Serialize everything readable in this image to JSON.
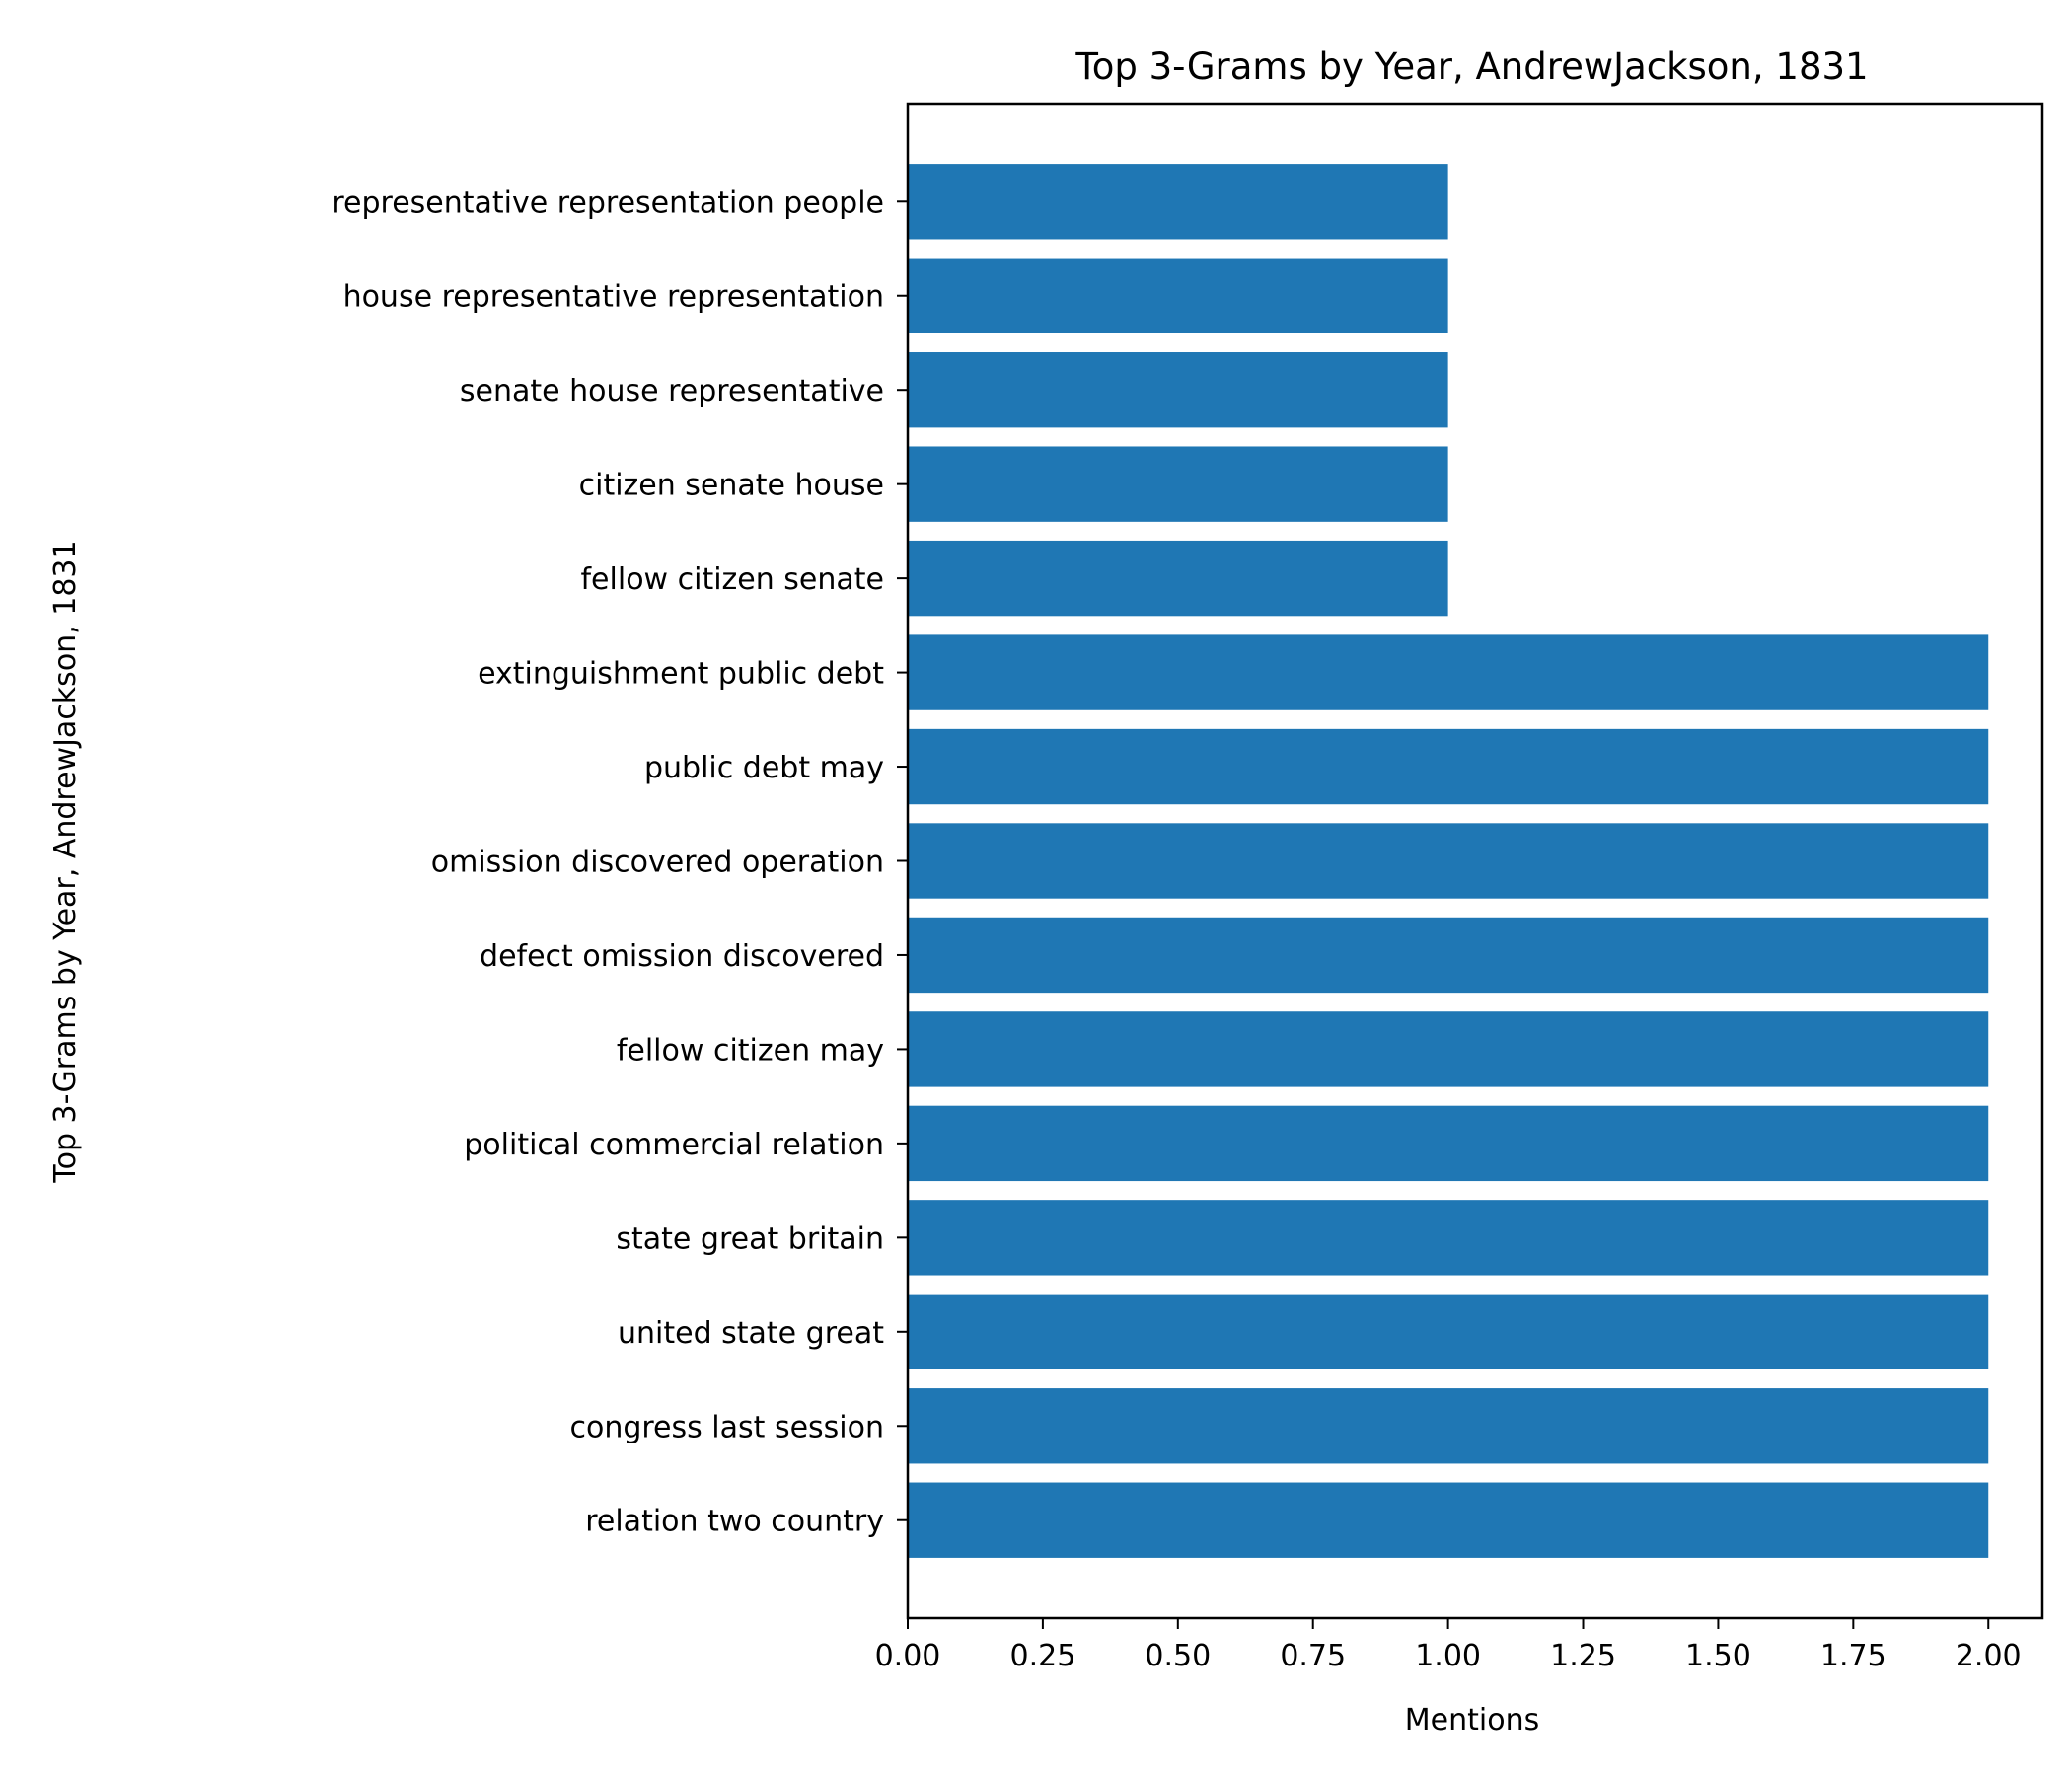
{
  "chart_data": {
    "type": "bar",
    "orientation": "horizontal",
    "title": "Top 3-Grams by Year, AndrewJackson, 1831",
    "xlabel": "Mentions",
    "ylabel": "Top 3-Grams by Year, AndrewJackson, 1831",
    "categories": [
      "relation two country",
      "congress last session",
      "united state great",
      "state great britain",
      "political commercial relation",
      "fellow citizen may",
      "defect omission discovered",
      "omission discovered operation",
      "public debt may",
      "extinguishment public debt",
      "fellow citizen senate",
      "citizen senate house",
      "senate house representative",
      "house representative representation",
      "representative representation people"
    ],
    "values": [
      2,
      2,
      2,
      2,
      2,
      2,
      2,
      2,
      2,
      2,
      1,
      1,
      1,
      1,
      1
    ],
    "xlim": [
      0,
      2.1
    ],
    "xticks": [
      "0.00",
      "0.25",
      "0.50",
      "0.75",
      "1.00",
      "1.25",
      "1.50",
      "1.75",
      "2.00"
    ],
    "grid": false,
    "bar_color": "#1f77b4"
  }
}
